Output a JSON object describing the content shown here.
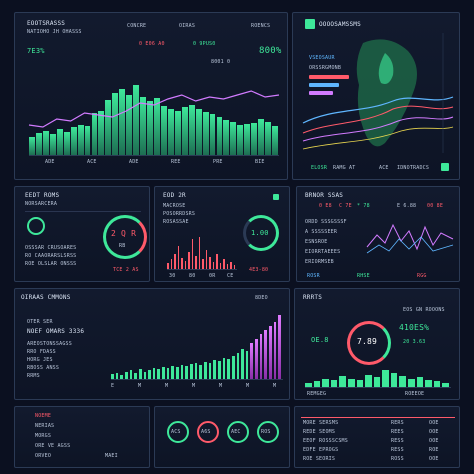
{
  "panel1": {
    "title": "EOOTSRASSS",
    "subtitle": "NATIOHO JH OHASSS",
    "value": "7E3%",
    "nav": [
      "CONCRE",
      "OIRAS",
      "ROENCS"
    ],
    "tabs": [
      "0 E06 A0",
      "0 9PUS0"
    ],
    "big_value": "800%",
    "small": "8001 0",
    "labels": [
      "ADE",
      "ACE",
      "ADE",
      "REE",
      "PRE",
      "BIE"
    ],
    "bar_values": [
      18,
      22,
      24,
      21,
      26,
      23,
      28,
      30,
      29,
      42,
      44,
      55,
      62,
      66,
      60,
      70,
      58,
      54,
      57,
      49,
      46,
      44,
      48,
      50,
      46,
      43,
      41,
      38,
      35,
      33,
      30,
      31,
      32,
      36,
      33,
      29
    ],
    "line_values": [
      30,
      28,
      36,
      34,
      42,
      40,
      38,
      44,
      52,
      50,
      56,
      60,
      54,
      58,
      56,
      60,
      64,
      58,
      60
    ]
  },
  "panel2": {
    "title": "OOOOSAMSSMS",
    "legend": [
      "VSEOSAUR",
      "ORSSRGMONB"
    ],
    "footer": [
      "ELOSR",
      "RAMG AT",
      "ACE",
      "IDNOTRADCS"
    ],
    "logo_text": "TL"
  },
  "panel3": {
    "title": "EEDT ROMS",
    "subtitle": "NORSARCERA",
    "gauge_value": "2 Q R",
    "gauge_sub": "RB",
    "footer": "TCE 2 AS",
    "rows": [
      "OSSSAR CRUSOARES",
      "RO CAAORARSLSRSS",
      "ROE OLSLAR ONSSS"
    ]
  },
  "panel4": {
    "title": "EOD 2R",
    "chips": [
      "MACROSE",
      "POSORRDSRS",
      "ROSASSAE"
    ],
    "gauge_value": "1.00",
    "gauge_sub": "4E3-80",
    "labels": [
      "30",
      "80",
      "0R",
      "CE"
    ],
    "spike_values": [
      6,
      9,
      14,
      22,
      10,
      8,
      16,
      28,
      12,
      30,
      9,
      18,
      11,
      7,
      14,
      6,
      9,
      5,
      7,
      4
    ]
  },
  "panel5": {
    "title": "BRNOR SSAS",
    "values": [
      "0 E8",
      "C 7E",
      "* 78",
      "E 6.88",
      "00 8E"
    ],
    "rows": [
      "ORDD SSSGSSSF",
      "A SSSSSEER",
      "ESNSROE",
      "EIORRTAEEES",
      "ERIORMSEB"
    ],
    "legend": [
      "ROSR",
      "RHSE",
      "RGG"
    ]
  },
  "panel6": {
    "title": "OIRAAS CMMONS",
    "value": "8DEO",
    "header": "OTER SER",
    "table_title": "NOEF OMARS 3336",
    "rows": [
      "AREOSTONSSAGSS",
      "RRO FDASS",
      "HORG JES",
      "RBOSS ANSS",
      "RRMS"
    ],
    "bar_values": [
      5,
      6,
      4,
      7,
      8,
      6,
      9,
      7,
      8,
      10,
      9,
      11,
      10,
      12,
      11,
      13,
      12,
      14,
      15,
      13,
      16,
      15,
      18,
      17,
      20,
      19,
      22,
      24,
      28,
      26,
      34,
      38,
      42,
      46,
      50,
      54,
      60
    ],
    "axis": [
      "E",
      "M",
      "M",
      "M",
      "M",
      "M",
      "M"
    ]
  },
  "panel7": {
    "title": "RRRTS",
    "legend": "EOS GN ROOONS",
    "big_value": "410ES%",
    "sub_value": "20 3.63",
    "gauge_value": "7.89",
    "gauge_label": "OE.8",
    "labels": [
      "REMGEG",
      "ROEEOE"
    ],
    "green_bars": [
      3,
      4,
      6,
      5,
      8,
      6,
      5,
      9,
      7,
      12,
      10,
      8,
      6,
      7,
      5,
      4,
      3
    ]
  },
  "panel8": {
    "rows": [
      "NOEME",
      "NERIAS",
      "MORGS",
      "ORE VE AGSS",
      "ORVEO",
      "MAEI"
    ]
  },
  "panel9": {
    "gauges": [
      "ACS",
      "A6S",
      "AEC",
      "ROS"
    ]
  },
  "panel10": {
    "rows": [
      "MORE SERSMS",
      "REDE SEOMS",
      "EEOF ROSSSCSMS",
      "EDFE EPROGS",
      "ROE SEORIS"
    ],
    "col2": [
      "RERS",
      "REES",
      "RESS",
      "RESS",
      "ROSS"
    ],
    "col3": [
      "OOE",
      "OOE",
      "OOE",
      "ROE",
      "OOE"
    ]
  },
  "colors": {
    "accent_green": "#3ee89a",
    "accent_red": "#ff5a6a",
    "accent_purple": "#d27bff",
    "accent_blue": "#5fb6ff"
  }
}
